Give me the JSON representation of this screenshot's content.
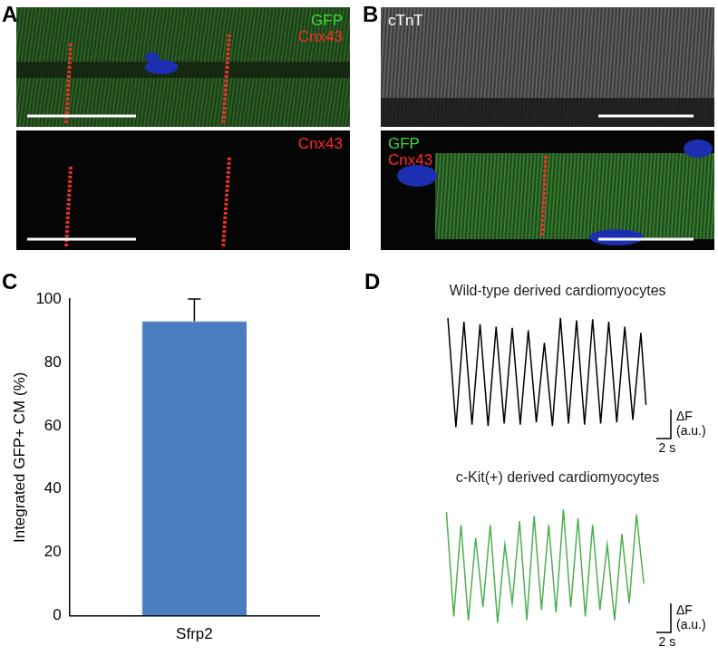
{
  "panels": [
    {
      "label": "A",
      "images": [
        {
          "channels": [
            {
              "text": "GFP",
              "color": "#3ddc3d"
            },
            {
              "text": "Cnx43",
              "color": "#ff2a2a"
            }
          ]
        },
        {
          "channels": [
            {
              "text": "Cnx43",
              "color": "#ff2a2a"
            }
          ]
        }
      ]
    },
    {
      "label": "B",
      "images": [
        {
          "channels": [
            {
              "text": "cTnT",
              "color": "#ffffff"
            }
          ]
        },
        {
          "channels": [
            {
              "text": "GFP",
              "color": "#3ddc3d"
            },
            {
              "text": "Cnx43",
              "color": "#ff2a2a"
            }
          ]
        }
      ]
    }
  ],
  "chart_data": [
    {
      "panel": "C",
      "type": "bar",
      "y_label": "Integrated GFP+ CM (%)",
      "categories": [
        "Sfrp2"
      ],
      "values": [
        93
      ],
      "errors": [
        7
      ],
      "color": "#4a7dc0",
      "ylim": [
        0,
        100
      ],
      "yticks": [
        0,
        20,
        40,
        60,
        80,
        100
      ],
      "grid": false
    },
    {
      "panel": "D",
      "type": "line",
      "title": "Wild-type derived cardiomyocytes",
      "color": "#000000",
      "x": [
        0.5,
        1.6,
        2.7,
        3.8,
        4.9,
        6.0,
        7.1,
        8.2,
        9.3,
        10.4,
        11.5,
        12.6,
        13.7,
        14.8,
        15.9,
        17.0,
        18.1,
        19.2,
        20.3,
        21.4,
        22.5,
        23.6,
        24.7,
        25.8,
        26.9,
        27.6
      ],
      "values": [
        100,
        12,
        97,
        14,
        95,
        13,
        93,
        15,
        92,
        14,
        90,
        16,
        80,
        13,
        100,
        15,
        98,
        14,
        99,
        15,
        97,
        16,
        93,
        18,
        88,
        30
      ],
      "xlim": [
        0,
        31
      ],
      "ylim": [
        0,
        110
      ],
      "tick_labels": false,
      "grid": false,
      "scale_bar": {
        "x": 2,
        "x_label": "2 s",
        "y_label": [
          "ΔF",
          "(a.u.)"
        ]
      }
    },
    {
      "type": "line",
      "title": "c-Kit(+) derived cardiomyocytes",
      "color": "#4caf50",
      "x": [
        0.3,
        1.3,
        2.3,
        3.3,
        4.3,
        5.3,
        6.3,
        7.3,
        8.3,
        9.3,
        10.3,
        11.3,
        12.3,
        13.3,
        14.3,
        15.3,
        16.3,
        17.3,
        18.3,
        19.3,
        20.3,
        21.3,
        22.3,
        23.3,
        24.3,
        25.3,
        26.3,
        27.3
      ],
      "values": [
        95,
        15,
        85,
        12,
        75,
        22,
        85,
        10,
        70,
        25,
        88,
        12,
        92,
        20,
        85,
        18,
        97,
        22,
        90,
        15,
        85,
        20,
        70,
        12,
        78,
        25,
        93,
        40
      ],
      "xlim": [
        0,
        31
      ],
      "ylim": [
        0,
        110
      ],
      "tick_labels": false,
      "grid": false,
      "scale_bar": {
        "x": 2,
        "x_label": "2 s",
        "y_label": [
          "ΔF",
          "(a.u.)"
        ]
      }
    }
  ]
}
